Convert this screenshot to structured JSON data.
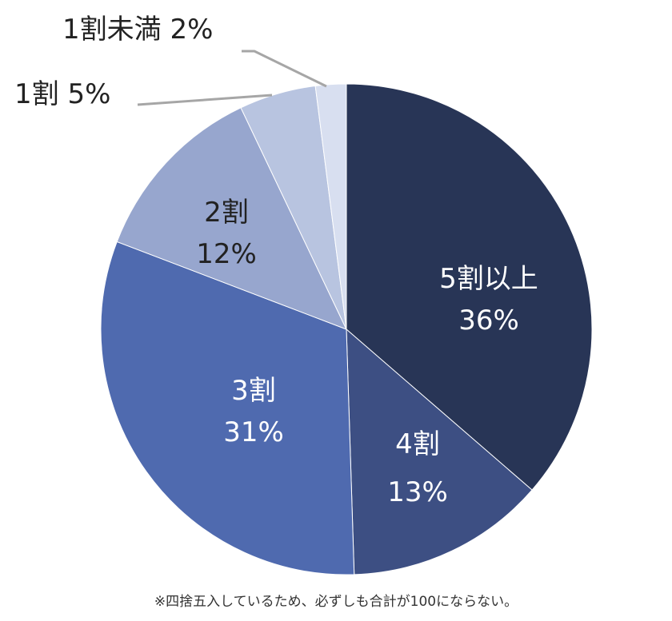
{
  "chart_data": {
    "type": "pie",
    "title": "",
    "start_angle_deg": 0,
    "direction": "clockwise",
    "categories": [
      "5割以上",
      "4割",
      "3割",
      "2割",
      "1割",
      "1割未満"
    ],
    "values": [
      36,
      13,
      31,
      12,
      5,
      2
    ],
    "value_labels": [
      "36%",
      "13%",
      "31%",
      "12%",
      "5%",
      "2%"
    ],
    "colors": [
      "#283556",
      "#3d4f83",
      "#4f6aaf",
      "#97a6ce",
      "#b8c4e0",
      "#d8dff0"
    ],
    "label_colors": [
      "#ffffff",
      "#ffffff",
      "#ffffff",
      "#222222",
      "#222222",
      "#222222"
    ],
    "label_position": [
      "inside",
      "inside",
      "inside",
      "inside",
      "outside",
      "outside"
    ],
    "legend": "none",
    "footnote": "※四捨五入しているため、必ずしも合計が100にならない。"
  },
  "slices": [
    {
      "name": "5割以上",
      "pct": "36%"
    },
    {
      "name": "4割",
      "pct": "13%"
    },
    {
      "name": "3割",
      "pct": "31%"
    },
    {
      "name": "2割",
      "pct": "12%"
    },
    {
      "name": "1割",
      "pct": "5%",
      "combined": "1割 5%"
    },
    {
      "name": "1割未満",
      "pct": "2%",
      "combined": "1割未満 2%"
    }
  ],
  "footnote": "※四捨五入しているため、必ずしも合計が100にならない。",
  "leader_line_color": "#a6a6a6"
}
